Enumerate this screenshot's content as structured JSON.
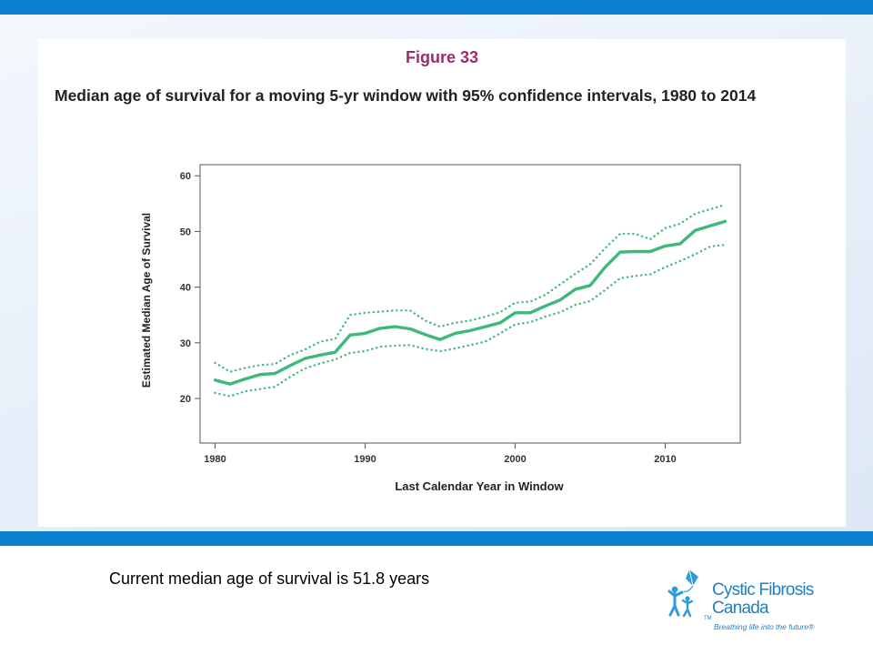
{
  "figure": {
    "label": "Figure 33",
    "title": "Median age of survival for a moving 5-yr window with 95% confidence intervals, 1980 to 2014"
  },
  "caption": "Current median age of survival is 51.8 years",
  "logo": {
    "line1": "Cystic Fibrosis",
    "line2": "Canada",
    "tagline": "Breathing life into the future®",
    "tm": "TM"
  },
  "colors": {
    "accent_bar": "#0a7fd0",
    "series": "#3fb879",
    "figure_label": "#9b2d6e"
  },
  "chart_data": {
    "type": "line",
    "title": "Median age of survival for a moving 5-yr window with 95% confidence intervals, 1980 to 2014",
    "xlabel": "Last Calendar Year in Window",
    "ylabel": "Estimated Median Age of Survival",
    "xlim": [
      1979,
      2015
    ],
    "ylim": [
      12,
      62
    ],
    "xticks": [
      1980,
      1990,
      2000,
      2010
    ],
    "yticks": [
      20,
      30,
      40,
      50,
      60
    ],
    "grid": false,
    "x": [
      1980,
      1981,
      1982,
      1983,
      1984,
      1985,
      1986,
      1987,
      1988,
      1989,
      1990,
      1991,
      1992,
      1993,
      1994,
      1995,
      1996,
      1997,
      1998,
      1999,
      2000,
      2001,
      2002,
      2003,
      2004,
      2005,
      2006,
      2007,
      2008,
      2009,
      2010,
      2011,
      2012,
      2013,
      2014
    ],
    "series": [
      {
        "role": "estimate",
        "style": "solid",
        "values": [
          23.3,
          22.6,
          23.5,
          24.3,
          24.5,
          25.9,
          27.2,
          27.8,
          28.3,
          31.4,
          31.7,
          32.6,
          32.9,
          32.5,
          31.5,
          30.6,
          31.7,
          32.2,
          32.9,
          33.6,
          35.4,
          35.4,
          36.6,
          37.7,
          39.6,
          40.3,
          43.6,
          46.3,
          46.4,
          46.4,
          47.4,
          47.8,
          50.2,
          51.0,
          51.8
        ]
      },
      {
        "role": "upper 95% CI",
        "style": "dotted",
        "values": [
          26.4,
          24.8,
          25.5,
          26.0,
          26.2,
          27.8,
          28.8,
          30.2,
          30.7,
          35.0,
          35.4,
          35.6,
          35.8,
          35.8,
          34.0,
          32.9,
          33.6,
          34.0,
          34.7,
          35.5,
          37.2,
          37.4,
          38.6,
          40.5,
          42.4,
          44.1,
          47.0,
          49.6,
          49.6,
          48.6,
          50.6,
          51.4,
          53.2,
          54.0,
          54.8
        ]
      },
      {
        "role": "lower 95% CI",
        "style": "dotted",
        "values": [
          21.0,
          20.4,
          21.3,
          21.7,
          22.1,
          23.9,
          25.4,
          26.3,
          27.0,
          28.2,
          28.5,
          29.3,
          29.5,
          29.6,
          28.9,
          28.5,
          29.0,
          29.6,
          30.2,
          31.7,
          33.3,
          33.7,
          34.7,
          35.5,
          36.8,
          37.5,
          39.5,
          41.6,
          42.0,
          42.3,
          43.6,
          44.7,
          45.9,
          47.3,
          47.6
        ]
      }
    ]
  }
}
